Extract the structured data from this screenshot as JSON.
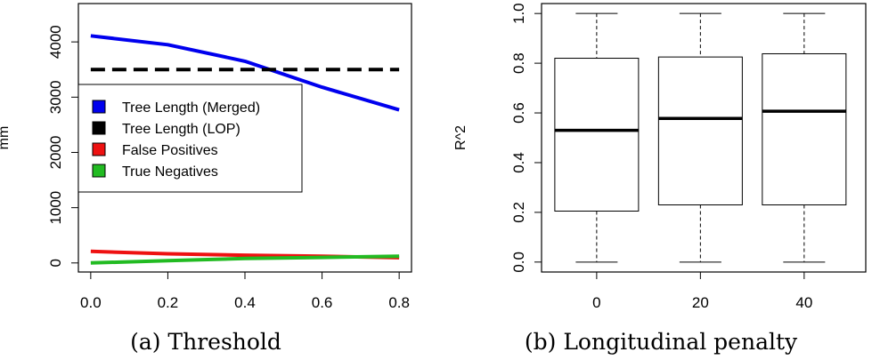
{
  "charts": [
    {
      "caption": "(a) Threshold",
      "ylabel": "mm",
      "chart_data": {
        "type": "line",
        "x": [
          0.0,
          0.2,
          0.4,
          0.6,
          0.8
        ],
        "xticks": [
          0.0,
          0.2,
          0.4,
          0.6,
          0.8
        ],
        "xtick_labels": [
          "0.0",
          "0.2",
          "0.4",
          "0.6",
          "0.8"
        ],
        "yticks": [
          0,
          1000,
          2000,
          3000,
          4000
        ],
        "ytick_labels": [
          "0",
          "1000",
          "2000",
          "3000",
          "4000"
        ],
        "xlim": [
          -0.032,
          0.832
        ],
        "ylim": [
          -164,
          4694
        ],
        "series": [
          {
            "name": "Tree Length (Merged)",
            "color": "#0000ee",
            "dash": false,
            "values": [
              4110,
              3950,
              3650,
              3180,
              2770
            ]
          },
          {
            "name": "Tree Length (LOP)",
            "color": "#000000",
            "dash": true,
            "values": [
              3500,
              3500,
              3500,
              3500,
              3500
            ]
          },
          {
            "name": "False Positives",
            "color": "#ee1111",
            "dash": false,
            "values": [
              210,
              165,
              140,
              120,
              95
            ]
          },
          {
            "name": "True Negatives",
            "color": "#22bb22",
            "dash": false,
            "values": [
              0,
              40,
              80,
              100,
              120
            ]
          }
        ],
        "legend": "left",
        "grid": false
      }
    },
    {
      "caption": "(b) Longitudinal penalty",
      "ylabel": "R^2",
      "chart_data": {
        "type": "box",
        "categories": [
          "0",
          "20",
          "40"
        ],
        "yticks": [
          0.0,
          0.2,
          0.4,
          0.6,
          0.8,
          1.0
        ],
        "ytick_labels": [
          "0.0",
          "0.2",
          "0.4",
          "0.6",
          "0.8",
          "1.0"
        ],
        "ylim": [
          -0.04,
          1.04
        ],
        "boxes": [
          {
            "min": 0.0,
            "q1": 0.205,
            "median": 0.53,
            "q3": 0.82,
            "max": 1.0
          },
          {
            "min": 0.0,
            "q1": 0.23,
            "median": 0.578,
            "q3": 0.825,
            "max": 1.0
          },
          {
            "min": 0.0,
            "q1": 0.23,
            "median": 0.607,
            "q3": 0.838,
            "max": 1.0
          }
        ],
        "grid": false
      }
    }
  ]
}
